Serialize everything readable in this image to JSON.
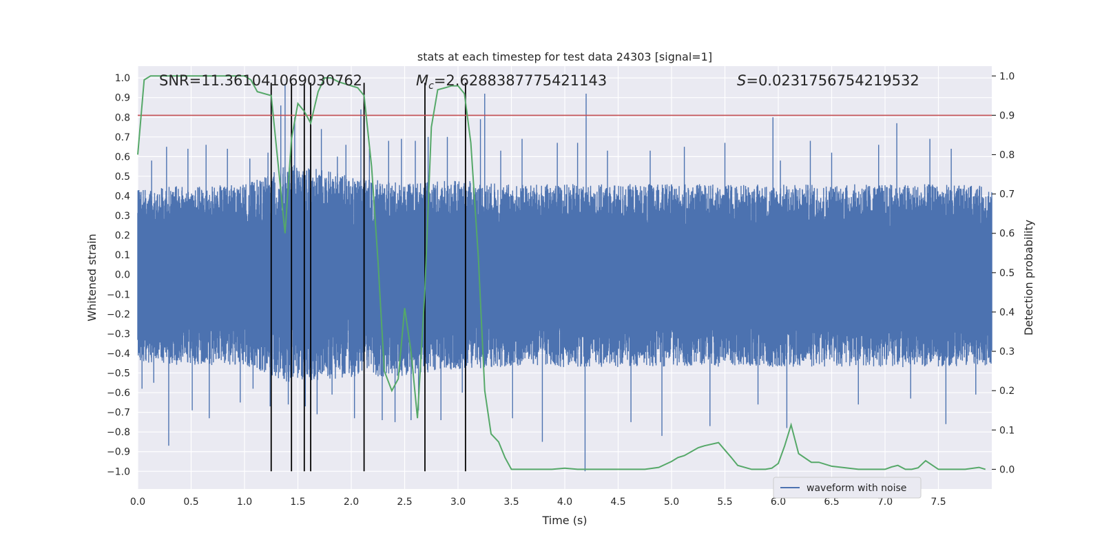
{
  "chart_data": {
    "type": "line",
    "title": "stats at each timestep for test data 24303 [signal=1]",
    "xlabel": "Time (s)",
    "ylabel_left": "Whitened strain",
    "ylabel_right": "Detection probability",
    "xlim": [
      0.0,
      8.0
    ],
    "ylim_left": [
      -1.09,
      1.06
    ],
    "ylim_right": [
      -0.05,
      1.025
    ],
    "x_ticks": [
      "0.0",
      "0.5",
      "1.0",
      "1.5",
      "2.0",
      "2.5",
      "3.0",
      "3.5",
      "4.0",
      "4.5",
      "5.0",
      "5.5",
      "6.0",
      "6.5",
      "7.0",
      "7.5"
    ],
    "y_left_ticks": [
      "1.0",
      "0.9",
      "0.8",
      "0.7",
      "0.6",
      "0.5",
      "0.4",
      "0.3",
      "0.2",
      "0.1",
      "0.0",
      "−0.1",
      "−0.2",
      "−0.3",
      "−0.4",
      "−0.5",
      "−0.6",
      "−0.7",
      "−0.8",
      "−0.9",
      "−1.0"
    ],
    "y_right_ticks": [
      "1.0",
      "0.9",
      "0.8",
      "0.7",
      "0.6",
      "0.5",
      "0.4",
      "0.3",
      "0.2",
      "0.1",
      "0.0"
    ],
    "annotations": {
      "snr": "SNR=11.361041069030762",
      "mc_symbol": "M",
      "mc_sub": "c",
      "mc_value": "=2.6288387775421143",
      "s_symbol": "S",
      "s_value": "=0.0231756754219532"
    },
    "legend": {
      "label": "waveform with noise",
      "position": "lower-right"
    },
    "threshold": {
      "value": 0.9,
      "axis": "right",
      "color": "#c44e52"
    },
    "event_markers_x": [
      1.25,
      1.44,
      1.56,
      1.62,
      2.12,
      2.69,
      3.07
    ],
    "series": [
      {
        "name": "waveform with noise",
        "axis": "left",
        "color": "#4c72b0",
        "envelope_upper": [
          [
            0.0,
            0.43
          ],
          [
            0.3,
            0.45
          ],
          [
            0.6,
            0.45
          ],
          [
            1.0,
            0.46
          ],
          [
            1.2,
            0.5
          ],
          [
            1.4,
            0.56
          ],
          [
            1.6,
            0.55
          ],
          [
            2.0,
            0.5
          ],
          [
            2.4,
            0.47
          ],
          [
            2.7,
            0.47
          ],
          [
            3.0,
            0.48
          ],
          [
            3.5,
            0.46
          ],
          [
            4.0,
            0.46
          ],
          [
            4.5,
            0.46
          ],
          [
            5.0,
            0.46
          ],
          [
            5.5,
            0.46
          ],
          [
            6.0,
            0.46
          ],
          [
            6.5,
            0.46
          ],
          [
            7.0,
            0.46
          ],
          [
            7.5,
            0.46
          ],
          [
            8.0,
            0.45
          ]
        ],
        "envelope_lower": [
          [
            0.0,
            -0.45
          ],
          [
            0.3,
            -0.46
          ],
          [
            0.6,
            -0.46
          ],
          [
            1.0,
            -0.46
          ],
          [
            1.2,
            -0.5
          ],
          [
            1.4,
            -0.55
          ],
          [
            1.6,
            -0.55
          ],
          [
            2.0,
            -0.52
          ],
          [
            2.4,
            -0.52
          ],
          [
            2.7,
            -0.5
          ],
          [
            3.0,
            -0.48
          ],
          [
            3.5,
            -0.47
          ],
          [
            4.0,
            -0.47
          ],
          [
            4.5,
            -0.47
          ],
          [
            5.0,
            -0.47
          ],
          [
            5.5,
            -0.47
          ],
          [
            6.0,
            -0.47
          ],
          [
            6.5,
            -0.47
          ],
          [
            7.0,
            -0.47
          ],
          [
            7.5,
            -0.47
          ],
          [
            8.0,
            -0.46
          ]
        ],
        "spikes": [
          [
            0.04,
            -0.58
          ],
          [
            0.13,
            0.58
          ],
          [
            0.15,
            -0.55
          ],
          [
            0.27,
            0.65
          ],
          [
            0.29,
            -0.87
          ],
          [
            0.47,
            0.64
          ],
          [
            0.51,
            -0.69
          ],
          [
            0.64,
            0.66
          ],
          [
            0.67,
            -0.73
          ],
          [
            0.84,
            0.64
          ],
          [
            0.96,
            -0.65
          ],
          [
            1.05,
            0.59
          ],
          [
            1.08,
            -0.58
          ],
          [
            1.22,
            0.62
          ],
          [
            1.24,
            -0.67
          ],
          [
            1.34,
            0.86
          ],
          [
            1.38,
            0.97
          ],
          [
            1.41,
            -0.66
          ],
          [
            1.47,
            0.8
          ],
          [
            1.57,
            -0.67
          ],
          [
            1.62,
            0.6
          ],
          [
            1.68,
            -0.71
          ],
          [
            1.72,
            0.74
          ],
          [
            1.82,
            -0.61
          ],
          [
            1.87,
            0.6
          ],
          [
            1.95,
            0.66
          ],
          [
            2.03,
            -0.73
          ],
          [
            2.09,
            0.84
          ],
          [
            2.17,
            0.64
          ],
          [
            2.29,
            -0.74
          ],
          [
            2.35,
            0.68
          ],
          [
            2.41,
            -0.75
          ],
          [
            2.47,
            0.69
          ],
          [
            2.56,
            -0.74
          ],
          [
            2.6,
            0.68
          ],
          [
            2.63,
            -0.69
          ],
          [
            2.72,
            0.7
          ],
          [
            2.84,
            -0.74
          ],
          [
            2.9,
            0.7
          ],
          [
            3.04,
            -0.6
          ],
          [
            3.21,
            0.79
          ],
          [
            3.25,
            0.92
          ],
          [
            3.4,
            0.63
          ],
          [
            3.51,
            -0.73
          ],
          [
            3.6,
            0.69
          ],
          [
            3.79,
            -0.85
          ],
          [
            3.93,
            0.67
          ],
          [
            4.12,
            0.67
          ],
          [
            4.19,
            -1.0
          ],
          [
            4.2,
            0.92
          ],
          [
            4.4,
            0.63
          ],
          [
            4.62,
            -0.75
          ],
          [
            4.8,
            0.63
          ],
          [
            4.91,
            -0.82
          ],
          [
            5.12,
            0.65
          ],
          [
            5.36,
            -0.77
          ],
          [
            5.5,
            0.67
          ],
          [
            5.81,
            -0.66
          ],
          [
            5.95,
            0.8
          ],
          [
            6.02,
            0.58
          ],
          [
            6.08,
            -0.78
          ],
          [
            6.3,
            0.68
          ],
          [
            6.5,
            0.62
          ],
          [
            6.75,
            -0.66
          ],
          [
            6.94,
            0.66
          ],
          [
            7.11,
            0.77
          ],
          [
            7.24,
            -0.63
          ],
          [
            7.42,
            0.69
          ],
          [
            7.57,
            -0.76
          ],
          [
            7.62,
            0.64
          ],
          [
            7.85,
            -0.61
          ]
        ]
      },
      {
        "name": "detection probability",
        "axis": "right",
        "color": "#55a868",
        "x": [
          0.0,
          0.06,
          0.12,
          0.25,
          0.5,
          0.75,
          1.0,
          1.06,
          1.12,
          1.25,
          1.38,
          1.44,
          1.5,
          1.56,
          1.62,
          1.69,
          1.75,
          1.81,
          1.88,
          1.94,
          2.06,
          2.12,
          2.19,
          2.25,
          2.31,
          2.38,
          2.44,
          2.5,
          2.56,
          2.62,
          2.69,
          2.75,
          2.81,
          2.88,
          2.94,
          3.0,
          3.06,
          3.12,
          3.19,
          3.25,
          3.31,
          3.38,
          3.44,
          3.5,
          3.75,
          3.88,
          4.0,
          4.12,
          4.25,
          4.5,
          4.75,
          4.88,
          5.0,
          5.06,
          5.12,
          5.25,
          5.31,
          5.44,
          5.56,
          5.62,
          5.75,
          5.88,
          5.94,
          6.0,
          6.06,
          6.12,
          6.19,
          6.31,
          6.38,
          6.5,
          6.75,
          6.88,
          7.0,
          7.06,
          7.12,
          7.19,
          7.25,
          7.31,
          7.38,
          7.5,
          7.75,
          7.88,
          7.94
        ],
        "y": [
          0.8,
          0.99,
          1.0,
          1.0,
          1.0,
          1.0,
          1.0,
          0.99,
          0.96,
          0.95,
          0.6,
          0.84,
          0.93,
          0.91,
          0.88,
          0.96,
          0.995,
          0.995,
          0.985,
          0.98,
          0.97,
          0.95,
          0.77,
          0.53,
          0.25,
          0.2,
          0.23,
          0.41,
          0.3,
          0.13,
          0.46,
          0.87,
          0.965,
          0.97,
          0.975,
          0.975,
          0.955,
          0.83,
          0.54,
          0.2,
          0.09,
          0.07,
          0.03,
          0.0,
          0.0,
          0.0,
          0.003,
          0.0,
          0.0,
          0.0,
          0.0,
          0.005,
          0.02,
          0.03,
          0.035,
          0.055,
          0.06,
          0.068,
          0.03,
          0.01,
          0.0,
          0.0,
          0.003,
          0.015,
          0.06,
          0.113,
          0.04,
          0.018,
          0.018,
          0.008,
          0.0,
          0.0,
          0.0,
          0.006,
          0.01,
          0.0,
          0.0,
          0.004,
          0.022,
          0.0,
          0.0,
          0.005,
          0.0
        ]
      }
    ]
  }
}
